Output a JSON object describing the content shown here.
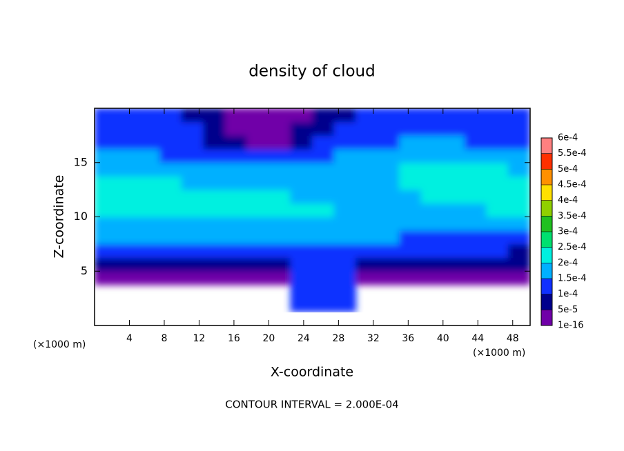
{
  "chart_data": {
    "type": "contour",
    "title": "density of cloud",
    "x_label": "X-coordinate",
    "y_label": "Z-coordinate",
    "x_unit_label": "(×1000 m)",
    "y_unit_label": "(×1000 m)",
    "footnote": "CONTOUR INTERVAL = 2.000E-04",
    "xlim": [
      0,
      50
    ],
    "ylim": [
      0,
      20
    ],
    "xticks": [
      4,
      8,
      12,
      16,
      20,
      24,
      28,
      32,
      36,
      40,
      44,
      48
    ],
    "yticks": [
      5,
      10,
      15
    ],
    "x": [
      1.25,
      3.75,
      6.25,
      8.75,
      11.25,
      13.75,
      16.25,
      18.75,
      21.25,
      23.75,
      26.25,
      28.75,
      31.25,
      33.75,
      36.25,
      38.75,
      41.25,
      43.75,
      46.25,
      48.75
    ],
    "z": [
      0.625,
      1.875,
      3.125,
      4.375,
      5.625,
      6.875,
      8.125,
      9.375,
      10.625,
      11.875,
      13.125,
      14.375,
      15.625,
      16.875,
      18.125,
      19.375
    ],
    "values": [
      [
        null,
        null,
        null,
        null,
        null,
        null,
        null,
        null,
        null,
        null,
        null,
        null,
        null,
        null,
        null,
        null,
        null,
        null,
        null,
        null
      ],
      [
        null,
        null,
        null,
        null,
        null,
        null,
        null,
        null,
        null,
        0.00012,
        0.00014,
        0.00011,
        null,
        null,
        null,
        null,
        null,
        null,
        null,
        null
      ],
      [
        null,
        null,
        null,
        null,
        null,
        null,
        null,
        null,
        null,
        0.00011,
        0.00013,
        0.00012,
        null,
        null,
        null,
        null,
        null,
        null,
        null,
        null
      ],
      [
        3e-05,
        4e-05,
        3e-05,
        3e-05,
        4e-05,
        3e-05,
        3e-05,
        4e-05,
        4e-05,
        0.0001,
        0.00011,
        0.0001,
        4e-05,
        3e-05,
        3e-05,
        4e-05,
        3e-05,
        3e-05,
        4e-05,
        3e-05
      ],
      [
        6e-05,
        7e-05,
        7e-05,
        6e-05,
        7e-05,
        8e-05,
        7e-05,
        8e-05,
        9e-05,
        0.00011,
        0.00012,
        0.00011,
        9e-05,
        8e-05,
        7e-05,
        7e-05,
        6e-05,
        6e-05,
        7e-05,
        6e-05
      ],
      [
        0.00011,
        0.00012,
        0.00012,
        0.00012,
        0.00011,
        0.00012,
        0.00012,
        0.00013,
        0.00013,
        0.00013,
        0.00013,
        0.00012,
        0.00012,
        0.00011,
        0.00011,
        0.0001,
        0.0001,
        0.0001,
        0.0001,
        9e-05
      ],
      [
        0.00016,
        0.00016,
        0.00016,
        0.00016,
        0.00016,
        0.00016,
        0.00016,
        0.00016,
        0.00016,
        0.00016,
        0.00016,
        0.00015,
        0.00015,
        0.00015,
        0.00014,
        0.00014,
        0.00013,
        0.00013,
        0.00013,
        0.00013
      ],
      [
        0.00019,
        0.00019,
        0.00018,
        0.00018,
        0.00018,
        0.00018,
        0.00018,
        0.00018,
        0.00018,
        0.00018,
        0.00017,
        0.00017,
        0.00016,
        0.00016,
        0.00016,
        0.00016,
        0.00016,
        0.00016,
        0.00016,
        0.00016
      ],
      [
        0.00021,
        0.00021,
        0.000205,
        0.00021,
        0.00021,
        0.00021,
        0.00021,
        0.00021,
        0.00021,
        0.00021,
        0.000205,
        0.00019,
        0.00018,
        0.00018,
        0.00018,
        0.00018,
        0.00019,
        0.00019,
        0.000205,
        0.000205
      ],
      [
        0.00022,
        0.00022,
        0.00022,
        0.00022,
        0.00022,
        0.00021,
        0.00021,
        0.00021,
        0.000205,
        0.000195,
        0.00019,
        0.00018,
        0.00018,
        0.00018,
        0.00019,
        0.00021,
        0.00021,
        0.00022,
        0.00022,
        0.00022
      ],
      [
        0.00022,
        0.00022,
        0.00021,
        0.000205,
        0.000195,
        0.00019,
        0.000185,
        0.00018,
        0.00018,
        0.00018,
        0.00018,
        0.00018,
        0.00018,
        0.00019,
        0.00021,
        0.00022,
        0.00022,
        0.00022,
        0.00022,
        0.00022
      ],
      [
        0.00019,
        0.00019,
        0.00018,
        0.00018,
        0.00017,
        0.00017,
        0.00017,
        0.00016,
        0.00016,
        0.00017,
        0.00017,
        0.00017,
        0.00017,
        0.00018,
        0.000205,
        0.000205,
        0.000205,
        0.000205,
        0.000205,
        0.000195
      ],
      [
        0.00016,
        0.00016,
        0.00015,
        0.00014,
        0.00013,
        0.00012,
        0.00011,
        0.00011,
        0.00012,
        0.00013,
        0.00014,
        0.00015,
        0.00016,
        0.00017,
        0.00017,
        0.00017,
        0.00017,
        0.00016,
        0.00016,
        0.00016
      ],
      [
        0.00014,
        0.00014,
        0.00013,
        0.00012,
        0.00011,
        9e-05,
        5e-05,
        3e-05,
        4e-05,
        7e-05,
        0.0001,
        0.00012,
        0.00013,
        0.00014,
        0.00015,
        0.00015,
        0.00015,
        0.00014,
        0.00014,
        0.00014
      ],
      [
        0.00013,
        0.00013,
        0.00012,
        0.00011,
        0.0001,
        7e-05,
        3e-05,
        2e-05,
        2e-05,
        5e-05,
        8e-05,
        0.0001,
        0.00012,
        0.00013,
        0.00013,
        0.00013,
        0.00013,
        0.00013,
        0.00013,
        0.00013
      ],
      [
        0.00012,
        0.00012,
        0.00011,
        0.0001,
        9e-05,
        6e-05,
        2e-05,
        2e-05,
        2e-05,
        4e-05,
        7e-05,
        9e-05,
        0.00011,
        0.00012,
        0.00012,
        0.00012,
        0.00012,
        0.00012,
        0.00012,
        0.00012
      ]
    ],
    "colorbar": {
      "ticks": [
        1e-16,
        {
          "value": 5e-05,
          "label": "5e-5"
        },
        {
          "value": 0.0001,
          "label": "1e-4"
        },
        {
          "value": 0.00015,
          "label": "1.5e-4"
        },
        {
          "value": 0.0002,
          "label": "2e-4"
        },
        {
          "value": 0.00025,
          "label": "2.5e-4"
        },
        {
          "value": 0.0003,
          "label": "3e-4"
        },
        {
          "value": 0.00035,
          "label": "3.5e-4"
        },
        {
          "value": 0.0004,
          "label": "4e-4"
        },
        {
          "value": 0.00045,
          "label": "4.5e-4"
        },
        {
          "value": 0.0005,
          "label": "5e-4"
        },
        {
          "value": 0.00055,
          "label": "5.5e-4"
        },
        {
          "value": 0.0006,
          "label": "6e-4"
        }
      ],
      "colors": [
        "#7000a8",
        "#00008c",
        "#1030ff",
        "#00b0ff",
        "#00f0e0",
        "#00e070",
        "#20c020",
        "#90d000",
        "#ffe000",
        "#ff9000",
        "#ff3000",
        "#ff8080"
      ]
    }
  }
}
